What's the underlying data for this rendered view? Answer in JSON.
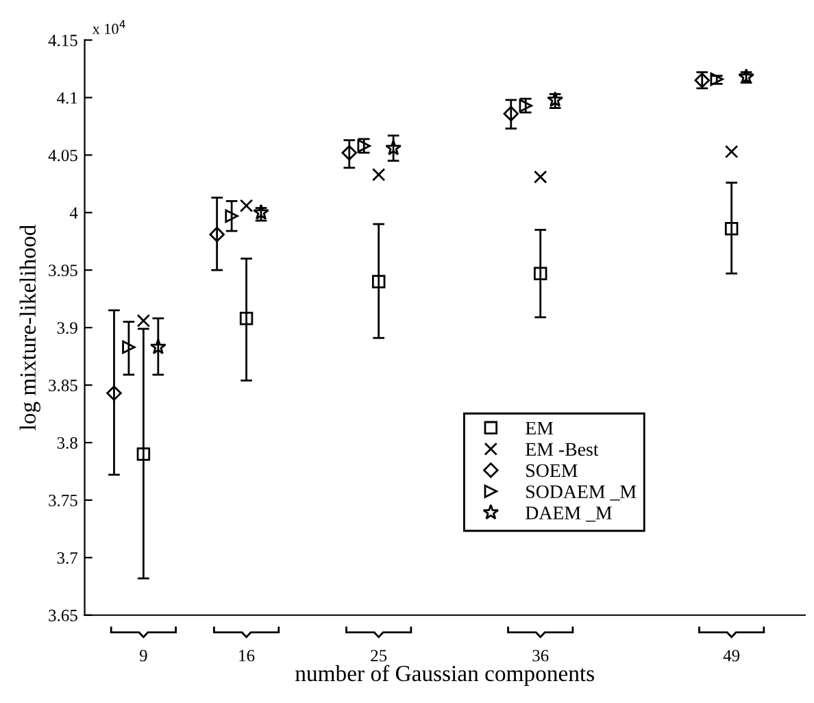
{
  "chart_data": {
    "type": "scatter",
    "xlabel": "number of Gaussian components",
    "ylabel": "log mixture-likelihood",
    "annotations": [
      "x 10$^{4}$"
    ],
    "xlim": [
      5,
      54
    ],
    "xticks": [
      9,
      16,
      25,
      36,
      49
    ],
    "ylim": [
      3.65,
      4.15
    ],
    "yticks": [
      3.65,
      3.7,
      3.75,
      3.8,
      3.85,
      3.9,
      3.95,
      4,
      4.05,
      4.1,
      4.15
    ],
    "grid": false,
    "legend": "bottom right",
    "series": [
      {
        "name": "EM",
        "color": "#000000",
        "marker": "square",
        "x": [
          9,
          16,
          25,
          36,
          49
        ],
        "values": [
          3.79,
          3.908,
          3.94,
          3.947,
          3.986
        ],
        "errors": [
          [
            3.682,
            3.899
          ],
          [
            3.854,
            3.96
          ],
          [
            3.891,
            3.99
          ],
          [
            3.909,
            3.985
          ],
          [
            3.947,
            4.026
          ]
        ]
      },
      {
        "name": "EM -Best",
        "color": "#000000",
        "marker": "cross",
        "x": [
          9,
          16,
          25,
          36,
          49
        ],
        "values": [
          3.906,
          4.006,
          4.033,
          4.031,
          4.053
        ]
      },
      {
        "name": "SOEM",
        "color": "#000000",
        "marker": "diamond",
        "x": [
          7,
          14,
          23,
          34,
          47
        ],
        "values": [
          3.843,
          3.981,
          4.052,
          4.086,
          4.115
        ],
        "errors": [
          [
            3.772,
            3.915
          ],
          [
            3.95,
            4.013
          ],
          [
            4.039,
            4.063
          ],
          [
            4.073,
            4.098
          ],
          [
            4.108,
            4.122
          ]
        ]
      },
      {
        "name": "SODAEM _M",
        "color": "#000000",
        "marker": "triangle",
        "x": [
          8,
          15,
          24,
          35,
          48
        ],
        "values": [
          3.883,
          3.997,
          4.058,
          4.093,
          4.116
        ],
        "errors": [
          [
            3.859,
            3.905
          ],
          [
            3.984,
            4.01
          ],
          [
            4.052,
            4.064
          ],
          [
            4.087,
            4.099
          ],
          [
            4.112,
            4.119
          ]
        ]
      },
      {
        "name": "DAEM _M",
        "color": "#000000",
        "marker": "star",
        "x": [
          10,
          17,
          26,
          37,
          50
        ],
        "values": [
          3.883,
          4.0,
          4.056,
          4.098,
          4.118
        ],
        "errors": [
          [
            3.859,
            3.908
          ],
          [
            3.993,
            4.004
          ],
          [
            4.045,
            4.067
          ],
          [
            4.091,
            4.103
          ],
          [
            4.113,
            4.122
          ]
        ]
      }
    ]
  }
}
